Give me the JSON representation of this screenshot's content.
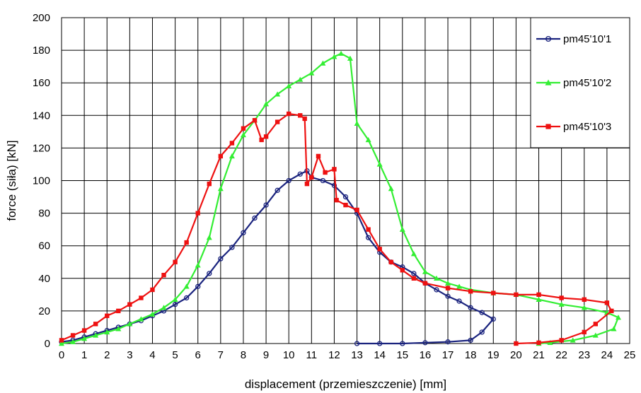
{
  "chart_data": {
    "type": "line",
    "title": "",
    "xlabel": "displacement (przemieszczenie) [mm]",
    "ylabel": "force (siła) [kN]",
    "xlim": [
      0,
      25
    ],
    "ylim": [
      0,
      200
    ],
    "xticks": [
      0,
      1,
      2,
      3,
      4,
      5,
      6,
      7,
      8,
      9,
      10,
      11,
      12,
      13,
      14,
      15,
      16,
      17,
      18,
      19,
      20,
      21,
      22,
      23,
      24,
      25
    ],
    "yticks": [
      0,
      20,
      40,
      60,
      80,
      100,
      120,
      140,
      160,
      180,
      200
    ],
    "grid": true,
    "legend_position": "top-right",
    "series": [
      {
        "name": "pm45'10'1",
        "color": "#1a237e",
        "marker": "circle",
        "points": [
          [
            0,
            1
          ],
          [
            0.5,
            2
          ],
          [
            1,
            4
          ],
          [
            1.5,
            6
          ],
          [
            2,
            8
          ],
          [
            2.5,
            10
          ],
          [
            3,
            12
          ],
          [
            3.5,
            14
          ],
          [
            4,
            17
          ],
          [
            4.5,
            20
          ],
          [
            5,
            24
          ],
          [
            5.5,
            28
          ],
          [
            6,
            35
          ],
          [
            6.5,
            43
          ],
          [
            7,
            52
          ],
          [
            7.5,
            59
          ],
          [
            8,
            68
          ],
          [
            8.5,
            77
          ],
          [
            9,
            85
          ],
          [
            9.5,
            94
          ],
          [
            10,
            100
          ],
          [
            10.5,
            104
          ],
          [
            10.8,
            106
          ],
          [
            11,
            102
          ],
          [
            11.5,
            100
          ],
          [
            12,
            97
          ],
          [
            12.5,
            90
          ],
          [
            13,
            80
          ],
          [
            13.5,
            65
          ],
          [
            14,
            56
          ],
          [
            14.5,
            50
          ],
          [
            15,
            47
          ],
          [
            15.5,
            43
          ],
          [
            16,
            37
          ],
          [
            16.5,
            33
          ],
          [
            17,
            29
          ],
          [
            17.5,
            26
          ],
          [
            18,
            22
          ],
          [
            18.5,
            19
          ],
          [
            19,
            15
          ],
          [
            18.5,
            7
          ],
          [
            18,
            2
          ],
          [
            17,
            1
          ],
          [
            16,
            0.5
          ],
          [
            15,
            0
          ],
          [
            14,
            0
          ],
          [
            13,
            0
          ]
        ]
      },
      {
        "name": "pm45'10'2",
        "color": "#33ee33",
        "marker": "triangle",
        "points": [
          [
            0,
            0
          ],
          [
            0.5,
            1
          ],
          [
            1,
            3
          ],
          [
            1.5,
            5
          ],
          [
            2,
            7
          ],
          [
            2.5,
            9
          ],
          [
            3,
            12
          ],
          [
            3.5,
            15
          ],
          [
            4,
            18
          ],
          [
            4.5,
            22
          ],
          [
            5,
            27
          ],
          [
            5.5,
            35
          ],
          [
            6,
            48
          ],
          [
            6.5,
            65
          ],
          [
            7,
            95
          ],
          [
            7.5,
            115
          ],
          [
            8,
            128
          ],
          [
            8.5,
            137
          ],
          [
            9,
            147
          ],
          [
            9.5,
            153
          ],
          [
            10,
            158
          ],
          [
            10.5,
            162
          ],
          [
            11,
            166
          ],
          [
            11.5,
            172
          ],
          [
            12,
            176
          ],
          [
            12.3,
            178
          ],
          [
            12.7,
            175
          ],
          [
            13,
            135
          ],
          [
            13.5,
            125
          ],
          [
            14,
            110
          ],
          [
            14.5,
            95
          ],
          [
            15,
            70
          ],
          [
            15.5,
            55
          ],
          [
            16,
            44
          ],
          [
            16.5,
            40
          ],
          [
            17,
            37
          ],
          [
            17.5,
            35
          ],
          [
            18,
            33
          ],
          [
            19,
            31
          ],
          [
            20,
            30
          ],
          [
            21,
            27
          ],
          [
            22,
            24
          ],
          [
            23,
            22
          ],
          [
            24,
            19
          ],
          [
            24.5,
            16
          ],
          [
            24.3,
            9
          ],
          [
            23.5,
            5
          ],
          [
            22.5,
            2
          ],
          [
            21.5,
            0.5
          ],
          [
            21,
            0
          ]
        ]
      },
      {
        "name": "pm45'10'3",
        "color": "#ee1111",
        "marker": "square",
        "points": [
          [
            0,
            2
          ],
          [
            0.5,
            5
          ],
          [
            1,
            8
          ],
          [
            1.5,
            12
          ],
          [
            2,
            17
          ],
          [
            2.5,
            20
          ],
          [
            3,
            24
          ],
          [
            3.5,
            28
          ],
          [
            4,
            33
          ],
          [
            4.5,
            42
          ],
          [
            5,
            50
          ],
          [
            5.5,
            62
          ],
          [
            6,
            80
          ],
          [
            6.5,
            98
          ],
          [
            7,
            115
          ],
          [
            7.5,
            123
          ],
          [
            8,
            132
          ],
          [
            8.5,
            137
          ],
          [
            8.8,
            125
          ],
          [
            9,
            127
          ],
          [
            9.5,
            136
          ],
          [
            10,
            141
          ],
          [
            10.5,
            140
          ],
          [
            10.7,
            138
          ],
          [
            10.8,
            98
          ],
          [
            11,
            102
          ],
          [
            11.3,
            115
          ],
          [
            11.6,
            105
          ],
          [
            12,
            107
          ],
          [
            12.1,
            88
          ],
          [
            12.5,
            85
          ],
          [
            13,
            82
          ],
          [
            13.5,
            70
          ],
          [
            14,
            58
          ],
          [
            14.5,
            50
          ],
          [
            15,
            45
          ],
          [
            15.5,
            40
          ],
          [
            16,
            37
          ],
          [
            17,
            34
          ],
          [
            18,
            32
          ],
          [
            19,
            31
          ],
          [
            20,
            30
          ],
          [
            21,
            30
          ],
          [
            22,
            28
          ],
          [
            23,
            27
          ],
          [
            24,
            25
          ],
          [
            24.2,
            20
          ],
          [
            23.5,
            12
          ],
          [
            23,
            7
          ],
          [
            22,
            2
          ],
          [
            21,
            0.5
          ],
          [
            20,
            0
          ]
        ]
      }
    ]
  }
}
